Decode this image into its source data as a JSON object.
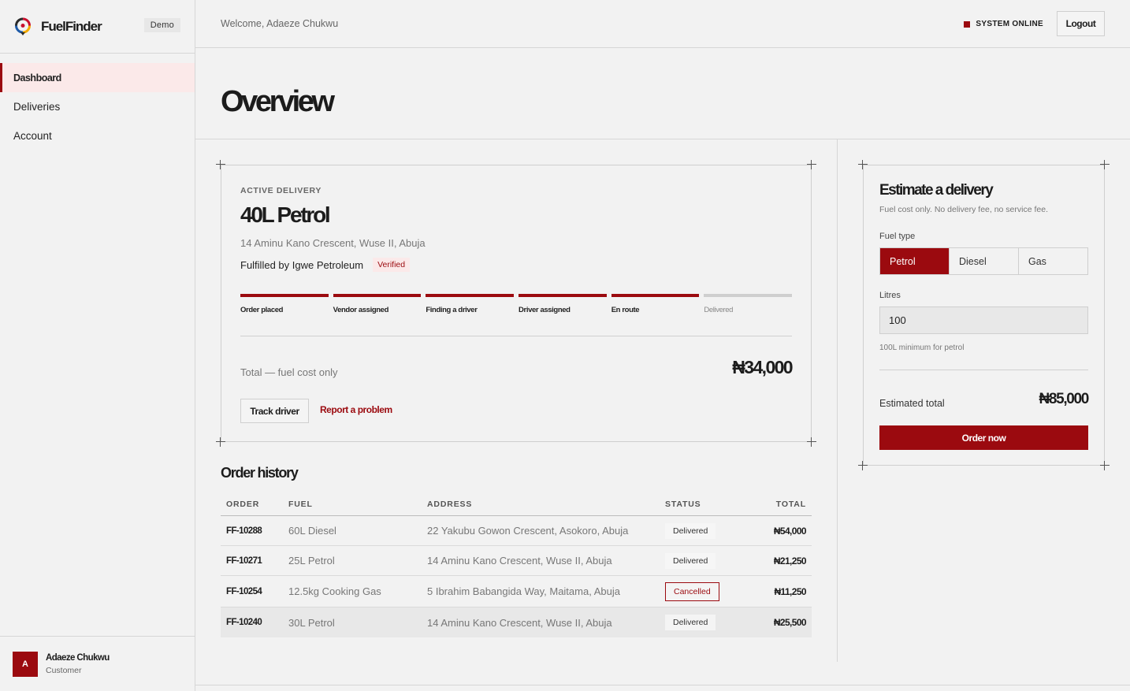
{
  "brand": {
    "name": "FuelFinder",
    "badge": "Demo"
  },
  "sidebar": {
    "items": [
      {
        "label": "Dashboard",
        "active": true
      },
      {
        "label": "Deliveries",
        "active": false
      },
      {
        "label": "Account",
        "active": false
      }
    ],
    "user": {
      "initial": "A",
      "name": "Adaeze Chukwu",
      "role": "Customer"
    }
  },
  "topbar": {
    "welcome": "Welcome, Adaeze Chukwu",
    "status": "SYSTEM ONLINE",
    "logout": "Logout"
  },
  "page": {
    "title": "Overview"
  },
  "active_delivery": {
    "eyebrow": "ACTIVE DELIVERY",
    "title": "40L Petrol",
    "address": "14 Aminu Kano Crescent, Wuse II, Abuja",
    "fulfilled_by": "Fulfilled by Igwe Petroleum",
    "verified": "Verified",
    "steps": [
      {
        "label": "Order placed",
        "done": true
      },
      {
        "label": "Vendor assigned",
        "done": true
      },
      {
        "label": "Finding a driver",
        "done": true
      },
      {
        "label": "Driver assigned",
        "done": true
      },
      {
        "label": "En route",
        "done": true
      },
      {
        "label": "Delivered",
        "done": false
      }
    ],
    "total_label": "Total — fuel cost only",
    "total_value": "₦34,000",
    "track_button": "Track driver",
    "report_link": "Report a problem"
  },
  "history": {
    "title": "Order history",
    "headers": {
      "order": "ORDER",
      "fuel": "FUEL",
      "address": "ADDRESS",
      "status": "STATUS",
      "total": "TOTAL"
    },
    "rows": [
      {
        "order": "FF-10288",
        "fuel": "60L Diesel",
        "address": "22 Yakubu Gowon Crescent, Asokoro, Abuja",
        "status": "Delivered",
        "total": "₦54,000"
      },
      {
        "order": "FF-10271",
        "fuel": "25L Petrol",
        "address": "14 Aminu Kano Crescent, Wuse II, Abuja",
        "status": "Delivered",
        "total": "₦21,250"
      },
      {
        "order": "FF-10254",
        "fuel": "12.5kg Cooking Gas",
        "address": "5 Ibrahim Babangida Way, Maitama, Abuja",
        "status": "Cancelled",
        "total": "₦11,250"
      },
      {
        "order": "FF-10240",
        "fuel": "30L Petrol",
        "address": "14 Aminu Kano Crescent, Wuse II, Abuja",
        "status": "Delivered",
        "total": "₦25,500"
      }
    ]
  },
  "estimate": {
    "title": "Estimate a delivery",
    "subtitle": "Fuel cost only. No delivery fee, no service fee.",
    "fuel_type_label": "Fuel type",
    "fuel_options": [
      "Petrol",
      "Diesel",
      "Gas"
    ],
    "selected_fuel": "Petrol",
    "litres_label": "Litres",
    "litres_value": "100",
    "hint": "100L minimum for petrol",
    "estimated_label": "Estimated total",
    "estimated_value": "₦85,000",
    "order_button": "Order now"
  },
  "colors": {
    "accent": "#9b0a0f",
    "background": "#f2f2f2",
    "active_nav_bg": "#fbe9e9"
  }
}
